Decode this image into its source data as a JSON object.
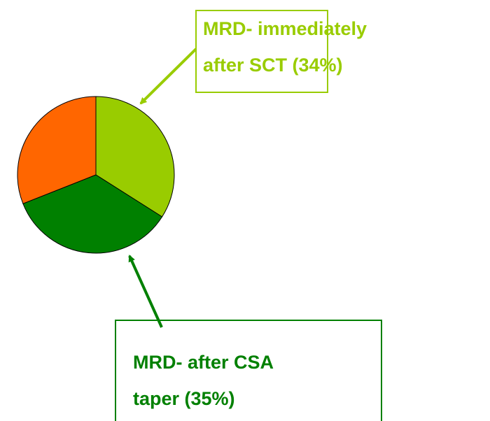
{
  "chart_data": {
    "type": "pie",
    "categories": [
      null,
      null,
      null
    ],
    "values": [
      34,
      35,
      31
    ],
    "colors": [
      "#99cc00",
      "#008000",
      "#ff6600"
    ],
    "annotations": [
      {
        "lines": [
          "MRD- immediately",
          "after SCT (34%)"
        ],
        "color": "#99cc00"
      },
      {
        "lines": [
          "MRD- after CSA",
          "taper (35%)"
        ],
        "color": "#008000"
      }
    ]
  }
}
